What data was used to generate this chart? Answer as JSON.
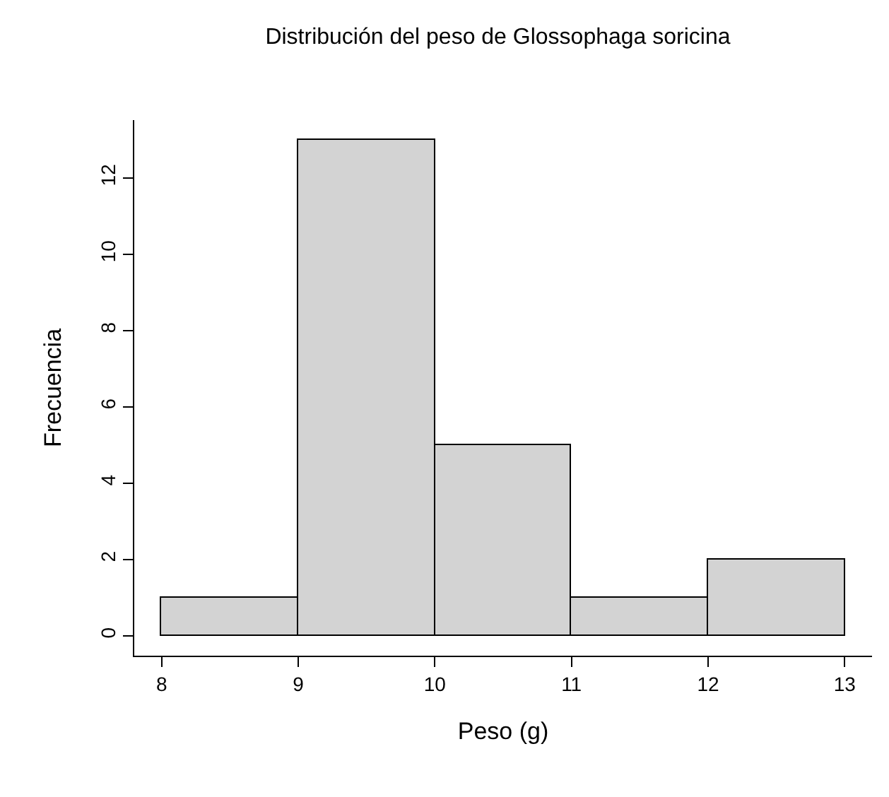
{
  "chart_data": {
    "type": "histogram",
    "title": "Distribución del peso de Glossophaga soricina",
    "xlabel": "Peso (g)",
    "ylabel": "Frecuencia",
    "bins": [
      8,
      9,
      10,
      11,
      12,
      13
    ],
    "values": [
      1,
      13,
      5,
      1,
      2
    ],
    "color": "#d3d3d3",
    "xlim": [
      7.8,
      13.2
    ],
    "xticks": [
      8,
      9,
      10,
      11,
      12,
      13
    ],
    "ylim": [
      -0.52,
      13.52
    ],
    "yticks": [
      0,
      2,
      4,
      6,
      8,
      10,
      12
    ]
  }
}
